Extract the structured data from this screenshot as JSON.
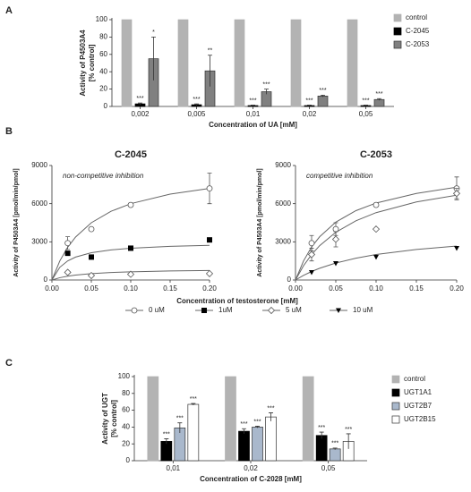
{
  "chart_data": [
    {
      "type": "bar",
      "panel": "A",
      "ylabel": [
        "Activity of  P4503A4",
        "[% control]"
      ],
      "xlabel": "Concentration of UA [mM]",
      "categories": [
        "0,002",
        "0,005",
        "0,01",
        "0,02",
        "0,05"
      ],
      "ylim": [
        0,
        100
      ],
      "yticks": [
        0,
        20,
        40,
        60,
        80,
        100
      ],
      "series": [
        {
          "name": "control",
          "color": "#b3b3b3",
          "stroke": "#b3b3b3",
          "values": [
            100,
            100,
            100,
            100,
            100
          ]
        },
        {
          "name": "C-2045",
          "color": "#000000",
          "stroke": "#000000",
          "values": [
            3,
            2,
            1,
            1,
            1
          ],
          "errors": [
            1,
            1,
            0.5,
            0.5,
            0.5
          ],
          "stars": [
            "***",
            "***",
            "***",
            "***",
            "***"
          ]
        },
        {
          "name": "C-2053",
          "color": "#808080",
          "stroke": "#333333",
          "values": [
            55,
            41,
            17,
            12,
            8
          ],
          "errors": [
            25,
            18,
            3,
            1,
            1
          ],
          "stars": [
            "*",
            "**",
            "***",
            "***",
            "***"
          ]
        }
      ]
    },
    {
      "type": "line",
      "panel": "B",
      "title": "C-2045",
      "annotation": "non-competitive inhibition",
      "ylabel": "Activity of P4503A4 [pmol/min/pmol]",
      "xlabel": "Concentration of testosterone [mM]",
      "xlim": [
        0,
        0.2
      ],
      "xticks": [
        {
          "value": 0,
          "label": "0.00"
        },
        {
          "value": 0.05,
          "label": "0.05"
        },
        {
          "value": 0.1,
          "label": "0.10"
        },
        {
          "value": 0.15,
          "label": "0.15"
        },
        {
          "value": 0.2,
          "label": "0.20"
        }
      ],
      "ylim": [
        0,
        9000
      ],
      "yticks": [
        0,
        3000,
        6000,
        9000
      ],
      "legend": [
        {
          "label": "0 uM",
          "marker": "circle-open"
        },
        {
          "label": "1uM",
          "marker": "square"
        },
        {
          "label": "5 uM",
          "marker": "diamond-open"
        },
        {
          "label": "10 uM",
          "marker": "triangle"
        }
      ],
      "x": [
        0.02,
        0.05,
        0.1,
        0.2
      ],
      "series": [
        {
          "marker": "circle-open",
          "values": [
            2900,
            4000,
            5900,
            7200
          ],
          "errors": [
            500,
            null,
            null,
            1200
          ]
        },
        {
          "marker": "square",
          "values": [
            2100,
            1800,
            2500,
            3150
          ]
        },
        {
          "marker": "diamond-open",
          "values": [
            600,
            350,
            450,
            500
          ]
        }
      ],
      "curves": [
        {
          "x": [
            0,
            0.01,
            0.02,
            0.03,
            0.05,
            0.075,
            0.1,
            0.15,
            0.2
          ],
          "values": [
            0,
            1500,
            2571,
            3375,
            4500,
            5400,
            6000,
            6750,
            7200
          ]
        },
        {
          "x": [
            0,
            0.01,
            0.02,
            0.03,
            0.05,
            0.075,
            0.1,
            0.15,
            0.2
          ],
          "values": [
            0,
            1000,
            1500,
            1800,
            2143,
            2368,
            2500,
            2647,
            2727
          ]
        },
        {
          "x": [
            0,
            0.01,
            0.02,
            0.03,
            0.05,
            0.075,
            0.1,
            0.15,
            0.2
          ],
          "values": [
            0,
            180,
            300,
            386,
            500,
            587,
            643,
            711,
            750
          ]
        }
      ]
    },
    {
      "type": "line",
      "title": "C-2053",
      "annotation": "competitive inhibition",
      "ylabel": "Activity of P4503A4 [pmol/min/pmol]",
      "xlim": [
        0,
        0.2
      ],
      "xticks": [
        {
          "value": 0,
          "label": "0.00"
        },
        {
          "value": 0.05,
          "label": "0.05"
        },
        {
          "value": 0.1,
          "label": "0.10"
        },
        {
          "value": 0.15,
          "label": "0.15"
        },
        {
          "value": 0.2,
          "label": "0.20"
        }
      ],
      "ylim": [
        0,
        9000
      ],
      "yticks": [
        0,
        3000,
        6000,
        9000
      ],
      "x": [
        0.02,
        0.05,
        0.1,
        0.2
      ],
      "series": [
        {
          "marker": "circle-open",
          "values": [
            2900,
            4000,
            5900,
            7200
          ],
          "errors": [
            600,
            500,
            null,
            900
          ]
        },
        {
          "marker": "diamond-open",
          "values": [
            2000,
            3200,
            4000,
            6800
          ],
          "errors": [
            500,
            600,
            null,
            400
          ]
        },
        {
          "marker": "triangle",
          "values": [
            600,
            1300,
            1800,
            2500
          ]
        }
      ],
      "curves": [
        {
          "x": [
            0,
            0.01,
            0.02,
            0.03,
            0.05,
            0.075,
            0.1,
            0.15,
            0.2
          ],
          "values": [
            0,
            1500,
            2600,
            3400,
            4550,
            5450,
            6050,
            6800,
            7300
          ]
        },
        {
          "x": [
            0,
            0.01,
            0.02,
            0.03,
            0.05,
            0.075,
            0.1,
            0.15,
            0.2
          ],
          "values": [
            0,
            1125,
            2000,
            2700,
            3750,
            4655,
            5294,
            6136,
            6667
          ]
        },
        {
          "x": [
            0,
            0.01,
            0.02,
            0.03,
            0.05,
            0.075,
            0.1,
            0.15,
            0.2
          ],
          "values": [
            0,
            364,
            667,
            923,
            1333,
            1714,
            2000,
            2400,
            2667
          ]
        }
      ]
    },
    {
      "type": "bar",
      "panel": "C",
      "ylabel": [
        "Activity of UGT",
        "[% control]"
      ],
      "xlabel": "Concentration of C-2028 [mM]",
      "categories": [
        "0,01",
        "0,02",
        "0,05"
      ],
      "ylim": [
        0,
        100
      ],
      "yticks": [
        0,
        20,
        40,
        60,
        80,
        100
      ],
      "series": [
        {
          "name": "control",
          "color": "#b3b3b3",
          "stroke": "#b3b3b3",
          "values": [
            100,
            100,
            100
          ]
        },
        {
          "name": "UGT1A1",
          "color": "#000000",
          "stroke": "#000000",
          "values": [
            23,
            35,
            30
          ],
          "errors": [
            3,
            3,
            4
          ],
          "stars": [
            "***",
            "***",
            "***"
          ]
        },
        {
          "name": "UGT2B7",
          "color": "#a9b8cc",
          "stroke": "#333333",
          "values": [
            39,
            40,
            14
          ],
          "errors": [
            6,
            1,
            1
          ],
          "stars": [
            "***",
            "***",
            "***"
          ]
        },
        {
          "name": "UGT2B15",
          "color": "#ffffff",
          "stroke": "#333333",
          "values": [
            67,
            52,
            23
          ],
          "errors": [
            1,
            5,
            9
          ],
          "stars": [
            "***",
            "***",
            "***"
          ]
        }
      ]
    }
  ]
}
